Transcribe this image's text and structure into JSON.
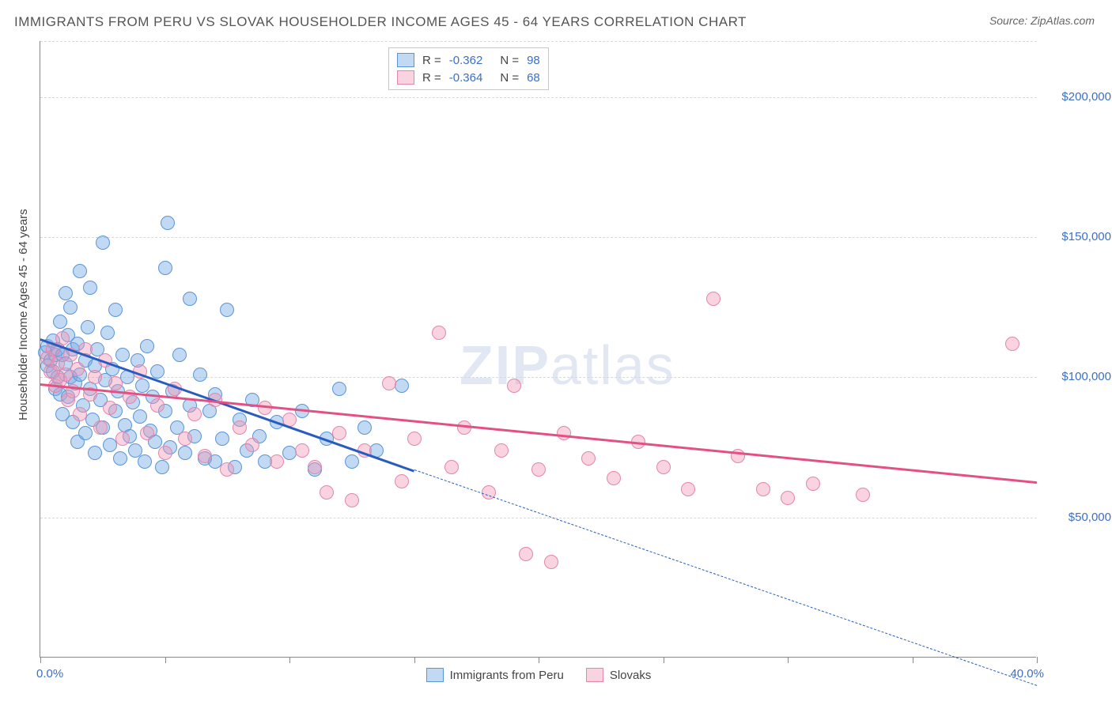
{
  "title": "IMMIGRANTS FROM PERU VS SLOVAK HOUSEHOLDER INCOME AGES 45 - 64 YEARS CORRELATION CHART",
  "source": "Source: ZipAtlas.com",
  "watermark_bold": "ZIP",
  "watermark_light": "atlas",
  "chart": {
    "type": "scatter",
    "xlim": [
      0,
      40
    ],
    "ylim": [
      0,
      220000
    ],
    "y_ticks": [
      50000,
      100000,
      150000,
      200000
    ],
    "y_tick_labels": [
      "$50,000",
      "$100,000",
      "$150,000",
      "$200,000"
    ],
    "x_start_label": "0.0%",
    "x_end_label": "40.0%",
    "y_axis_title": "Householder Income Ages 45 - 64 years",
    "x_tick_positions": [
      0,
      5,
      10,
      15,
      20,
      25,
      30,
      35,
      40
    ],
    "grid_color": "#d8d8d8",
    "background_color": "#ffffff",
    "marker_radius": 9,
    "series": [
      {
        "name": "Immigrants from Peru",
        "fill": "rgba(120,170,230,0.45)",
        "stroke": "#5a95d6",
        "trend_color": "#2a5cc0",
        "trend": {
          "x1": 0,
          "y1": 114000,
          "x2": 15,
          "y2": 67000,
          "dash": false,
          "width": 3
        },
        "trend_ext": {
          "x1": 15,
          "y1": 67000,
          "x2": 40,
          "y2": -10000,
          "dash": true,
          "width": 1.5
        },
        "r_label": "R =",
        "r_value": "-0.362",
        "n_label": "N =",
        "n_value": "98",
        "points": [
          [
            0.2,
            109000
          ],
          [
            0.3,
            111000
          ],
          [
            0.3,
            104000
          ],
          [
            0.4,
            106000
          ],
          [
            0.5,
            113000
          ],
          [
            0.5,
            102000
          ],
          [
            0.6,
            108000
          ],
          [
            0.6,
            96000
          ],
          [
            0.7,
            110000
          ],
          [
            0.7,
            100000
          ],
          [
            0.8,
            94000
          ],
          [
            0.8,
            120000
          ],
          [
            0.9,
            108000
          ],
          [
            0.9,
            87000
          ],
          [
            1.0,
            130000
          ],
          [
            1.0,
            105000
          ],
          [
            1.1,
            115000
          ],
          [
            1.1,
            93000
          ],
          [
            1.2,
            100000
          ],
          [
            1.2,
            125000
          ],
          [
            1.3,
            84000
          ],
          [
            1.3,
            110000
          ],
          [
            1.4,
            98000
          ],
          [
            1.5,
            112000
          ],
          [
            1.5,
            77000
          ],
          [
            1.6,
            138000
          ],
          [
            1.6,
            101000
          ],
          [
            1.7,
            90000
          ],
          [
            1.8,
            106000
          ],
          [
            1.8,
            80000
          ],
          [
            1.9,
            118000
          ],
          [
            2.0,
            96000
          ],
          [
            2.0,
            132000
          ],
          [
            2.1,
            85000
          ],
          [
            2.2,
            104000
          ],
          [
            2.2,
            73000
          ],
          [
            2.3,
            110000
          ],
          [
            2.4,
            92000
          ],
          [
            2.5,
            148000
          ],
          [
            2.5,
            82000
          ],
          [
            2.6,
            99000
          ],
          [
            2.7,
            116000
          ],
          [
            2.8,
            76000
          ],
          [
            2.9,
            103000
          ],
          [
            3.0,
            88000
          ],
          [
            3.0,
            124000
          ],
          [
            3.1,
            95000
          ],
          [
            3.2,
            71000
          ],
          [
            3.3,
            108000
          ],
          [
            3.4,
            83000
          ],
          [
            3.5,
            100000
          ],
          [
            3.6,
            79000
          ],
          [
            3.7,
            91000
          ],
          [
            3.8,
            74000
          ],
          [
            3.9,
            106000
          ],
          [
            4.0,
            86000
          ],
          [
            4.1,
            97000
          ],
          [
            4.2,
            70000
          ],
          [
            4.3,
            111000
          ],
          [
            4.4,
            81000
          ],
          [
            4.5,
            93000
          ],
          [
            4.6,
            77000
          ],
          [
            4.7,
            102000
          ],
          [
            4.9,
            68000
          ],
          [
            5.0,
            139000
          ],
          [
            5.0,
            88000
          ],
          [
            5.1,
            155000
          ],
          [
            5.2,
            75000
          ],
          [
            5.3,
            95000
          ],
          [
            5.5,
            82000
          ],
          [
            5.6,
            108000
          ],
          [
            5.8,
            73000
          ],
          [
            6.0,
            90000
          ],
          [
            6.0,
            128000
          ],
          [
            6.2,
            79000
          ],
          [
            6.4,
            101000
          ],
          [
            6.6,
            71000
          ],
          [
            6.8,
            88000
          ],
          [
            7.0,
            70000
          ],
          [
            7.0,
            94000
          ],
          [
            7.3,
            78000
          ],
          [
            7.5,
            124000
          ],
          [
            7.8,
            68000
          ],
          [
            8.0,
            85000
          ],
          [
            8.3,
            74000
          ],
          [
            8.5,
            92000
          ],
          [
            8.8,
            79000
          ],
          [
            9.0,
            70000
          ],
          [
            9.5,
            84000
          ],
          [
            10.0,
            73000
          ],
          [
            10.5,
            88000
          ],
          [
            11.0,
            67000
          ],
          [
            11.5,
            78000
          ],
          [
            12.0,
            96000
          ],
          [
            12.5,
            70000
          ],
          [
            13.0,
            82000
          ],
          [
            13.5,
            74000
          ],
          [
            14.5,
            97000
          ]
        ]
      },
      {
        "name": "Slovaks",
        "fill": "rgba(240,150,180,0.42)",
        "stroke": "#e386ab",
        "trend_color": "#e35183",
        "trend": {
          "x1": 0,
          "y1": 98000,
          "x2": 40,
          "y2": 63000,
          "dash": false,
          "width": 3
        },
        "r_label": "R =",
        "r_value": "-0.364",
        "n_label": "N =",
        "n_value": "68",
        "points": [
          [
            0.3,
            107000
          ],
          [
            0.4,
            102000
          ],
          [
            0.5,
            110000
          ],
          [
            0.6,
            97000
          ],
          [
            0.7,
            105000
          ],
          [
            0.8,
            99000
          ],
          [
            0.9,
            114000
          ],
          [
            1.0,
            101000
          ],
          [
            1.1,
            92000
          ],
          [
            1.2,
            108000
          ],
          [
            1.3,
            95000
          ],
          [
            1.5,
            103000
          ],
          [
            1.6,
            87000
          ],
          [
            1.8,
            110000
          ],
          [
            2.0,
            94000
          ],
          [
            2.2,
            100000
          ],
          [
            2.4,
            82000
          ],
          [
            2.6,
            106000
          ],
          [
            2.8,
            89000
          ],
          [
            3.0,
            98000
          ],
          [
            3.3,
            78000
          ],
          [
            3.6,
            93000
          ],
          [
            4.0,
            102000
          ],
          [
            4.3,
            80000
          ],
          [
            4.7,
            90000
          ],
          [
            5.0,
            73000
          ],
          [
            5.4,
            96000
          ],
          [
            5.8,
            78000
          ],
          [
            6.2,
            87000
          ],
          [
            6.6,
            72000
          ],
          [
            7.0,
            92000
          ],
          [
            7.5,
            67000
          ],
          [
            8.0,
            82000
          ],
          [
            8.5,
            76000
          ],
          [
            9.0,
            89000
          ],
          [
            9.5,
            70000
          ],
          [
            10.0,
            85000
          ],
          [
            10.5,
            74000
          ],
          [
            11.0,
            68000
          ],
          [
            11.5,
            59000
          ],
          [
            12.0,
            80000
          ],
          [
            12.5,
            56000
          ],
          [
            13.0,
            74000
          ],
          [
            14.0,
            98000
          ],
          [
            14.5,
            63000
          ],
          [
            15.0,
            78000
          ],
          [
            16.0,
            116000
          ],
          [
            16.5,
            68000
          ],
          [
            17.0,
            82000
          ],
          [
            18.0,
            59000
          ],
          [
            18.5,
            74000
          ],
          [
            19.0,
            97000
          ],
          [
            19.5,
            37000
          ],
          [
            20.0,
            67000
          ],
          [
            20.5,
            34000
          ],
          [
            21.0,
            80000
          ],
          [
            22.0,
            71000
          ],
          [
            23.0,
            64000
          ],
          [
            24.0,
            77000
          ],
          [
            25.0,
            68000
          ],
          [
            26.0,
            60000
          ],
          [
            27.0,
            128000
          ],
          [
            28.0,
            72000
          ],
          [
            29.0,
            60000
          ],
          [
            30.0,
            57000
          ],
          [
            31.0,
            62000
          ],
          [
            33.0,
            58000
          ],
          [
            39.0,
            112000
          ]
        ]
      }
    ]
  }
}
